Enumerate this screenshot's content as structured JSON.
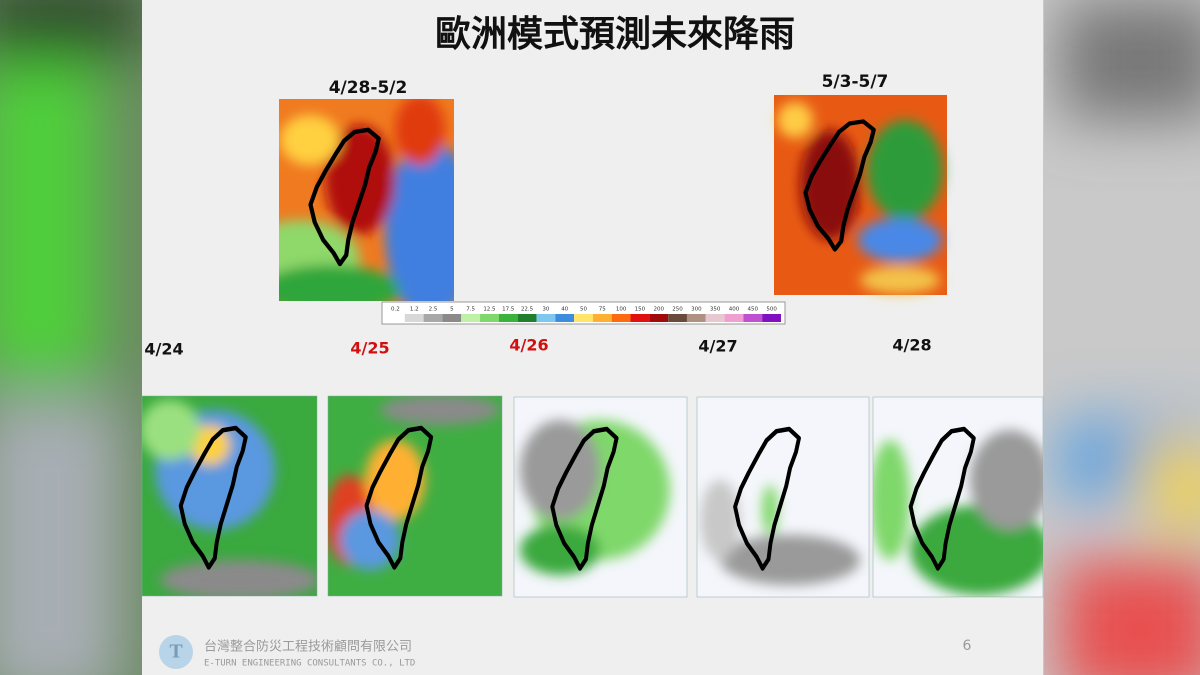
{
  "header": {
    "title": "歐洲模式預測未來降雨"
  },
  "periods": [
    "4/28-5/2",
    "5/3-5/7"
  ],
  "colorbar": {
    "ticks": [
      0.2,
      1.2,
      2.5,
      5,
      7.5,
      12.5,
      17.5,
      22.5,
      30,
      40,
      50,
      75,
      100,
      150,
      200,
      250,
      300,
      350,
      400,
      450,
      500
    ]
  },
  "days": [
    "4/24",
    "4/25",
    "4/26",
    "4/27",
    "4/28"
  ],
  "footer": {
    "company": "台灣整合防災工程技術顧問有限公司",
    "company_en": "E-TURN ENGINEERING CONSULTANTS CO., LTD",
    "page": "6"
  }
}
